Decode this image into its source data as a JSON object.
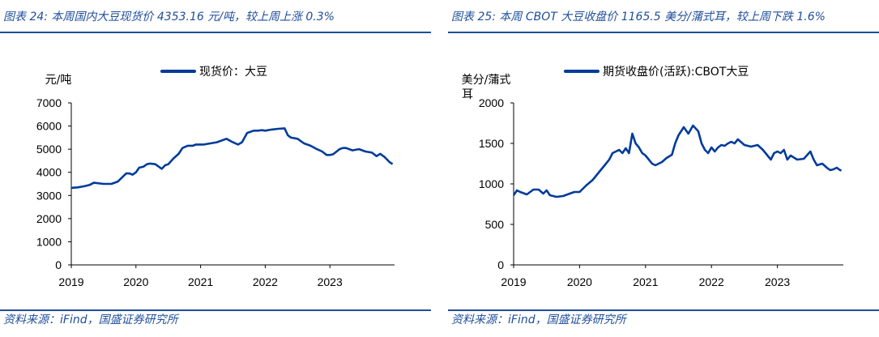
{
  "panels": [
    {
      "fig_title": "图表 24:  本周国内大豆现货价 4353.16 元/吨，较上周上涨 0.3%",
      "source": "资料来源：iFind，国盛证券研究所"
    },
    {
      "fig_title": "图表 25:  本周 CBOT 大豆收盘价 1165.5 美分/蒲式耳，较上周下跌 1.6%",
      "source": "资料来源：iFind，国盛证券研究所"
    }
  ],
  "colors": {
    "series": "#003b9a",
    "accent": "#1f4e9a",
    "axis": "#000000"
  },
  "chart_data": [
    {
      "type": "line",
      "title": "",
      "ylabel": "元/吨",
      "xlabel": "",
      "ylim": [
        0,
        7000
      ],
      "yticks": [
        0,
        1000,
        2000,
        3000,
        4000,
        5000,
        6000,
        7000
      ],
      "xlim": [
        2019.0,
        2024.0
      ],
      "xticks": [
        "2019",
        "2020",
        "2021",
        "2022",
        "2023"
      ],
      "legend": "top-center",
      "grid": false,
      "series": [
        {
          "name": "现货价：大豆",
          "x": [
            2019.0,
            2019.1,
            2019.2,
            2019.28,
            2019.35,
            2019.5,
            2019.62,
            2019.72,
            2019.85,
            2019.9,
            2019.95,
            2020.0,
            2020.05,
            2020.12,
            2020.17,
            2020.22,
            2020.3,
            2020.4,
            2020.45,
            2020.5,
            2020.58,
            2020.66,
            2020.72,
            2020.8,
            2020.88,
            2020.93,
            2021.0,
            2021.05,
            2021.15,
            2021.25,
            2021.4,
            2021.5,
            2021.58,
            2021.64,
            2021.72,
            2021.82,
            2021.88,
            2021.95,
            2022.0,
            2022.1,
            2022.2,
            2022.3,
            2022.35,
            2022.4,
            2022.5,
            2022.6,
            2022.7,
            2022.8,
            2022.88,
            2022.95,
            2023.0,
            2023.05,
            2023.15,
            2023.2,
            2023.25,
            2023.35,
            2023.45,
            2023.55,
            2023.65,
            2023.72,
            2023.78,
            2023.85,
            2023.92,
            2023.97
          ],
          "values": [
            3330,
            3350,
            3400,
            3450,
            3550,
            3500,
            3500,
            3600,
            3950,
            3950,
            3900,
            4000,
            4200,
            4250,
            4350,
            4380,
            4350,
            4150,
            4300,
            4350,
            4600,
            4800,
            5050,
            5150,
            5150,
            5200,
            5200,
            5200,
            5250,
            5300,
            5450,
            5300,
            5200,
            5300,
            5700,
            5800,
            5800,
            5820,
            5800,
            5850,
            5880,
            5900,
            5600,
            5500,
            5450,
            5250,
            5150,
            5000,
            4900,
            4750,
            4750,
            4780,
            5000,
            5050,
            5050,
            4950,
            5000,
            4900,
            4850,
            4700,
            4800,
            4650,
            4450,
            4353
          ]
        }
      ]
    },
    {
      "type": "line",
      "title": "",
      "ylabel": "美分/蒲式耳",
      "xlabel": "",
      "ylim": [
        0,
        2000
      ],
      "yticks": [
        0,
        500,
        1000,
        1500,
        2000
      ],
      "xlim": [
        2019.0,
        2024.0
      ],
      "xticks": [
        "2019",
        "2020",
        "2021",
        "2022",
        "2023"
      ],
      "legend": "top-center",
      "grid": false,
      "series": [
        {
          "name": "期货收盘价(活跃):CBOT大豆",
          "x": [
            2019.0,
            2019.05,
            2019.1,
            2019.2,
            2019.3,
            2019.38,
            2019.45,
            2019.5,
            2019.55,
            2019.65,
            2019.75,
            2019.85,
            2019.92,
            2020.0,
            2020.1,
            2020.2,
            2020.3,
            2020.4,
            2020.45,
            2020.5,
            2020.55,
            2020.6,
            2020.65,
            2020.7,
            2020.75,
            2020.8,
            2020.85,
            2020.9,
            2020.95,
            2021.0,
            2021.05,
            2021.1,
            2021.15,
            2021.25,
            2021.32,
            2021.4,
            2021.45,
            2021.5,
            2021.58,
            2021.65,
            2021.72,
            2021.8,
            2021.85,
            2021.9,
            2021.95,
            2022.0,
            2022.05,
            2022.1,
            2022.15,
            2022.2,
            2022.25,
            2022.3,
            2022.35,
            2022.4,
            2022.5,
            2022.6,
            2022.7,
            2022.78,
            2022.85,
            2022.9,
            2022.95,
            2023.0,
            2023.05,
            2023.1,
            2023.15,
            2023.2,
            2023.3,
            2023.4,
            2023.5,
            2023.55,
            2023.6,
            2023.68,
            2023.75,
            2023.8,
            2023.85,
            2023.9,
            2023.95,
            2023.97
          ],
          "values": [
            860,
            920,
            900,
            870,
            930,
            930,
            880,
            920,
            860,
            840,
            850,
            880,
            900,
            900,
            980,
            1050,
            1150,
            1250,
            1300,
            1380,
            1400,
            1420,
            1380,
            1440,
            1380,
            1620,
            1500,
            1450,
            1380,
            1350,
            1300,
            1250,
            1230,
            1270,
            1320,
            1360,
            1500,
            1600,
            1700,
            1620,
            1720,
            1650,
            1500,
            1420,
            1380,
            1450,
            1400,
            1450,
            1480,
            1470,
            1500,
            1520,
            1500,
            1550,
            1480,
            1460,
            1480,
            1420,
            1350,
            1300,
            1380,
            1400,
            1380,
            1420,
            1300,
            1350,
            1300,
            1310,
            1400,
            1300,
            1230,
            1250,
            1200,
            1170,
            1180,
            1200,
            1170,
            1165
          ]
        }
      ]
    }
  ]
}
